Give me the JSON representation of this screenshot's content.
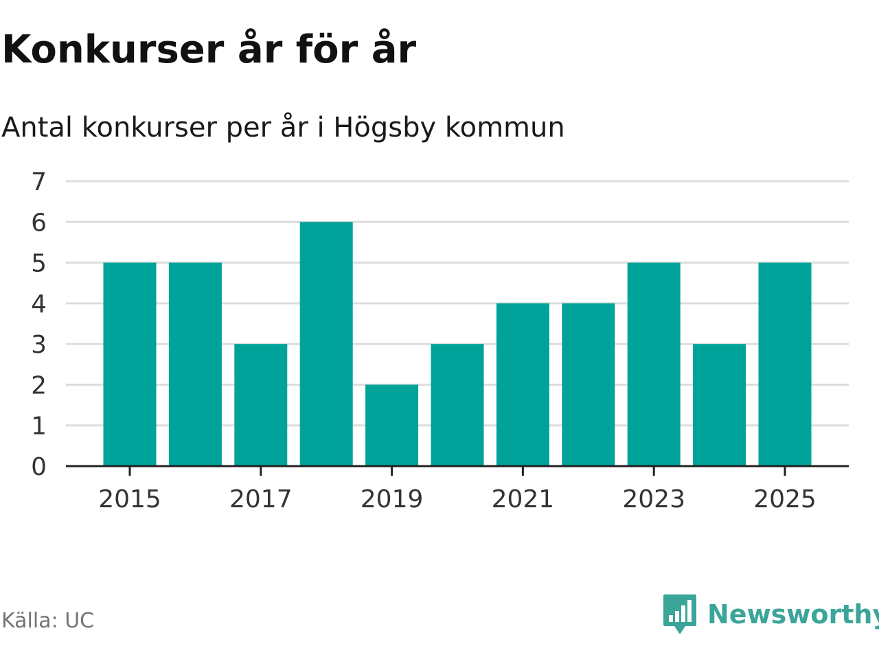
{
  "chart_data": {
    "type": "bar",
    "title": "Konkurser år för år",
    "subtitle": "Antal konkurser per år i Högsby kommun",
    "categories": [
      "2015",
      "2016",
      "2017",
      "2018",
      "2019",
      "2020",
      "2021",
      "2022",
      "2023",
      "2024",
      "2025"
    ],
    "values": [
      5,
      5,
      3,
      6,
      2,
      3,
      4,
      4,
      5,
      3,
      5
    ],
    "x_tick_labels": [
      "2015",
      "2017",
      "2019",
      "2021",
      "2023",
      "2025"
    ],
    "y_ticks": [
      0,
      1,
      2,
      3,
      4,
      5,
      6,
      7
    ],
    "ylim": [
      0,
      7
    ],
    "xlabel": "",
    "ylabel": "",
    "grid": true,
    "legend": "none",
    "bar_color": "#00a399"
  },
  "footer": {
    "source": "Källa: UC",
    "brand": "Newsworthy",
    "brand_color": "#3ba59a",
    "brand_icon": "newsworthy-logo-icon"
  }
}
